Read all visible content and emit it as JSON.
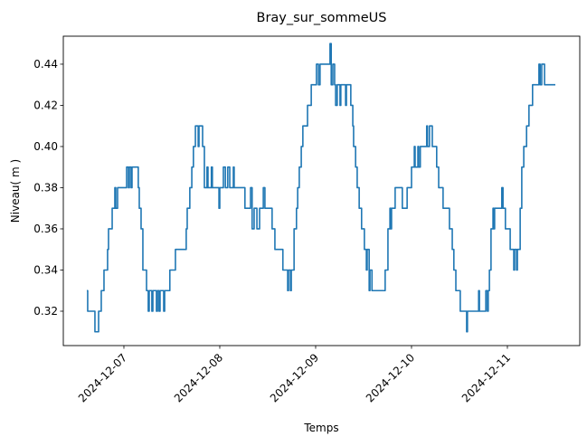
{
  "chart_data": {
    "type": "line",
    "title": "Bray_sur_sommeUS",
    "xlabel": "Temps",
    "ylabel": "Niveau( m )",
    "xlim": [
      "2024-12-06 08:50",
      "2024-12-11 18:07"
    ],
    "ylim": [
      0.3033,
      0.4536
    ],
    "x_ticks": [
      "2024-12-07",
      "2024-12-08",
      "2024-12-09",
      "2024-12-10",
      "2024-12-11"
    ],
    "y_ticks": [
      0.32,
      0.34,
      0.36,
      0.38,
      0.4,
      0.42,
      0.44
    ],
    "y_tick_labels": [
      "0.32",
      "0.34",
      "0.36",
      "0.38",
      "0.40",
      "0.42",
      "0.44"
    ],
    "grid": false,
    "color": "#1f77b4",
    "series": [
      {
        "points": [
          [
            "2024-12-06 14:43",
            0.33
          ],
          [
            "2024-12-06 14:56",
            0.32
          ],
          [
            "2024-12-06 16:32",
            0.32
          ],
          [
            "2024-12-06 16:45",
            0.31
          ],
          [
            "2024-12-06 17:26",
            0.31
          ],
          [
            "2024-12-06 17:40",
            0.32
          ],
          [
            "2024-12-06 18:20",
            0.33
          ],
          [
            "2024-12-06 19:01",
            0.34
          ],
          [
            "2024-12-06 19:55",
            0.35
          ],
          [
            "2024-12-06 20:09",
            0.36
          ],
          [
            "2024-12-06 21:04",
            0.37
          ],
          [
            "2024-12-06 21:44",
            0.38
          ],
          [
            "2024-12-06 21:58",
            0.37
          ],
          [
            "2024-12-06 22:25",
            0.38
          ],
          [
            "2024-12-07 00:41",
            0.39
          ],
          [
            "2024-12-07 01:08",
            0.38
          ],
          [
            "2024-12-07 01:22",
            0.39
          ],
          [
            "2024-12-07 01:48",
            0.38
          ],
          [
            "2024-12-07 02:02",
            0.39
          ],
          [
            "2024-12-07 03:36",
            0.38
          ],
          [
            "2024-12-07 03:51",
            0.37
          ],
          [
            "2024-12-07 04:18",
            0.36
          ],
          [
            "2024-12-07 04:45",
            0.34
          ],
          [
            "2024-12-07 05:40",
            0.33
          ],
          [
            "2024-12-07 06:06",
            0.32
          ],
          [
            "2024-12-07 06:20",
            0.33
          ],
          [
            "2024-12-07 07:00",
            0.32
          ],
          [
            "2024-12-07 07:15",
            0.33
          ],
          [
            "2024-12-07 08:09",
            0.32
          ],
          [
            "2024-12-07 08:24",
            0.33
          ],
          [
            "2024-12-07 08:48",
            0.32
          ],
          [
            "2024-12-07 09:03",
            0.33
          ],
          [
            "2024-12-07 09:58",
            0.32
          ],
          [
            "2024-12-07 10:12",
            0.33
          ],
          [
            "2024-12-07 11:30",
            0.34
          ],
          [
            "2024-12-07 12:54",
            0.35
          ],
          [
            "2024-12-07 15:36",
            0.36
          ],
          [
            "2024-12-07 15:51",
            0.37
          ],
          [
            "2024-12-07 16:30",
            0.38
          ],
          [
            "2024-12-07 17:00",
            0.39
          ],
          [
            "2024-12-07 17:24",
            0.4
          ],
          [
            "2024-12-07 17:54",
            0.41
          ],
          [
            "2024-12-07 18:36",
            0.4
          ],
          [
            "2024-12-07 18:48",
            0.41
          ],
          [
            "2024-12-07 19:42",
            0.4
          ],
          [
            "2024-12-07 20:09",
            0.38
          ],
          [
            "2024-12-07 20:48",
            0.39
          ],
          [
            "2024-12-07 21:03",
            0.38
          ],
          [
            "2024-12-07 21:54",
            0.39
          ],
          [
            "2024-12-07 22:09",
            0.38
          ],
          [
            "2024-12-07 23:48",
            0.37
          ],
          [
            "2024-12-08 00:00",
            0.38
          ],
          [
            "2024-12-08 00:54",
            0.39
          ],
          [
            "2024-12-08 01:24",
            0.38
          ],
          [
            "2024-12-08 02:00",
            0.39
          ],
          [
            "2024-12-08 02:30",
            0.38
          ],
          [
            "2024-12-08 03:24",
            0.39
          ],
          [
            "2024-12-08 03:36",
            0.38
          ],
          [
            "2024-12-08 06:06",
            0.38
          ],
          [
            "2024-12-08 06:18",
            0.37
          ],
          [
            "2024-12-08 07:42",
            0.38
          ],
          [
            "2024-12-08 08:06",
            0.36
          ],
          [
            "2024-12-08 08:36",
            0.37
          ],
          [
            "2024-12-08 09:18",
            0.36
          ],
          [
            "2024-12-08 09:58",
            0.37
          ],
          [
            "2024-12-08 10:54",
            0.38
          ],
          [
            "2024-12-08 11:18",
            0.37
          ],
          [
            "2024-12-08 13:06",
            0.36
          ],
          [
            "2024-12-08 13:48",
            0.35
          ],
          [
            "2024-12-08 15:48",
            0.34
          ],
          [
            "2024-12-08 17:00",
            0.33
          ],
          [
            "2024-12-08 17:12",
            0.34
          ],
          [
            "2024-12-08 17:42",
            0.33
          ],
          [
            "2024-12-08 17:54",
            0.34
          ],
          [
            "2024-12-08 18:36",
            0.36
          ],
          [
            "2024-12-08 19:12",
            0.37
          ],
          [
            "2024-12-08 19:30",
            0.38
          ],
          [
            "2024-12-08 19:54",
            0.39
          ],
          [
            "2024-12-08 20:24",
            0.4
          ],
          [
            "2024-12-08 20:48",
            0.41
          ],
          [
            "2024-12-08 21:58",
            0.42
          ],
          [
            "2024-12-08 22:54",
            0.43
          ],
          [
            "2024-12-09 00:12",
            0.44
          ],
          [
            "2024-12-09 00:42",
            0.43
          ],
          [
            "2024-12-09 01:06",
            0.44
          ],
          [
            "2024-12-09 03:36",
            0.45
          ],
          [
            "2024-12-09 03:54",
            0.43
          ],
          [
            "2024-12-09 04:18",
            0.44
          ],
          [
            "2024-12-09 04:45",
            0.43
          ],
          [
            "2024-12-09 05:00",
            0.42
          ],
          [
            "2024-12-09 05:24",
            0.43
          ],
          [
            "2024-12-09 06:06",
            0.42
          ],
          [
            "2024-12-09 06:18",
            0.43
          ],
          [
            "2024-12-09 07:30",
            0.42
          ],
          [
            "2024-12-09 07:42",
            0.43
          ],
          [
            "2024-12-09 08:48",
            0.42
          ],
          [
            "2024-12-09 09:18",
            0.41
          ],
          [
            "2024-12-09 09:30",
            0.4
          ],
          [
            "2024-12-09 10:00",
            0.39
          ],
          [
            "2024-12-09 10:24",
            0.38
          ],
          [
            "2024-12-09 10:54",
            0.37
          ],
          [
            "2024-12-09 11:30",
            0.36
          ],
          [
            "2024-12-09 12:12",
            0.35
          ],
          [
            "2024-12-09 12:42",
            0.34
          ],
          [
            "2024-12-09 12:54",
            0.35
          ],
          [
            "2024-12-09 13:24",
            0.33
          ],
          [
            "2024-12-09 13:36",
            0.34
          ],
          [
            "2024-12-09 14:06",
            0.33
          ],
          [
            "2024-12-09 17:00",
            0.33
          ],
          [
            "2024-12-09 17:24",
            0.34
          ],
          [
            "2024-12-09 18:06",
            0.36
          ],
          [
            "2024-12-09 18:36",
            0.37
          ],
          [
            "2024-12-09 18:48",
            0.36
          ],
          [
            "2024-12-09 19:00",
            0.37
          ],
          [
            "2024-12-09 19:54",
            0.38
          ],
          [
            "2024-12-09 21:18",
            0.38
          ],
          [
            "2024-12-09 21:42",
            0.37
          ],
          [
            "2024-12-09 22:54",
            0.38
          ],
          [
            "2024-12-10 00:00",
            0.39
          ],
          [
            "2024-12-10 00:42",
            0.4
          ],
          [
            "2024-12-10 00:54",
            0.39
          ],
          [
            "2024-12-10 01:36",
            0.4
          ],
          [
            "2024-12-10 01:48",
            0.39
          ],
          [
            "2024-12-10 02:12",
            0.4
          ],
          [
            "2024-12-10 03:48",
            0.41
          ],
          [
            "2024-12-10 04:00",
            0.4
          ],
          [
            "2024-12-10 04:30",
            0.41
          ],
          [
            "2024-12-10 05:12",
            0.4
          ],
          [
            "2024-12-10 06:18",
            0.39
          ],
          [
            "2024-12-10 06:48",
            0.38
          ],
          [
            "2024-12-10 07:54",
            0.37
          ],
          [
            "2024-12-10 09:30",
            0.36
          ],
          [
            "2024-12-10 10:12",
            0.35
          ],
          [
            "2024-12-10 10:36",
            0.34
          ],
          [
            "2024-12-10 11:06",
            0.33
          ],
          [
            "2024-12-10 12:12",
            0.32
          ],
          [
            "2024-12-10 13:48",
            0.31
          ],
          [
            "2024-12-10 14:00",
            0.32
          ],
          [
            "2024-12-10 16:48",
            0.33
          ],
          [
            "2024-12-10 17:00",
            0.32
          ],
          [
            "2024-12-10 18:36",
            0.33
          ],
          [
            "2024-12-10 19:00",
            0.32
          ],
          [
            "2024-12-10 19:12",
            0.33
          ],
          [
            "2024-12-10 19:30",
            0.34
          ],
          [
            "2024-12-10 19:54",
            0.36
          ],
          [
            "2024-12-10 20:24",
            0.37
          ],
          [
            "2024-12-10 20:36",
            0.36
          ],
          [
            "2024-12-10 20:48",
            0.37
          ],
          [
            "2024-12-10 22:36",
            0.38
          ],
          [
            "2024-12-10 22:54",
            0.37
          ],
          [
            "2024-12-10 23:30",
            0.36
          ],
          [
            "2024-12-11 00:42",
            0.35
          ],
          [
            "2024-12-11 01:36",
            0.34
          ],
          [
            "2024-12-11 01:48",
            0.35
          ],
          [
            "2024-12-11 02:18",
            0.34
          ],
          [
            "2024-12-11 02:30",
            0.35
          ],
          [
            "2024-12-11 03:12",
            0.37
          ],
          [
            "2024-12-11 03:36",
            0.39
          ],
          [
            "2024-12-11 04:06",
            0.4
          ],
          [
            "2024-12-11 04:48",
            0.41
          ],
          [
            "2024-12-11 05:24",
            0.42
          ],
          [
            "2024-12-11 06:18",
            0.43
          ],
          [
            "2024-12-11 07:54",
            0.44
          ],
          [
            "2024-12-11 08:12",
            0.43
          ],
          [
            "2024-12-11 08:36",
            0.44
          ],
          [
            "2024-12-11 09:18",
            0.43
          ],
          [
            "2024-12-11 12:00",
            0.43
          ]
        ]
      }
    ]
  }
}
